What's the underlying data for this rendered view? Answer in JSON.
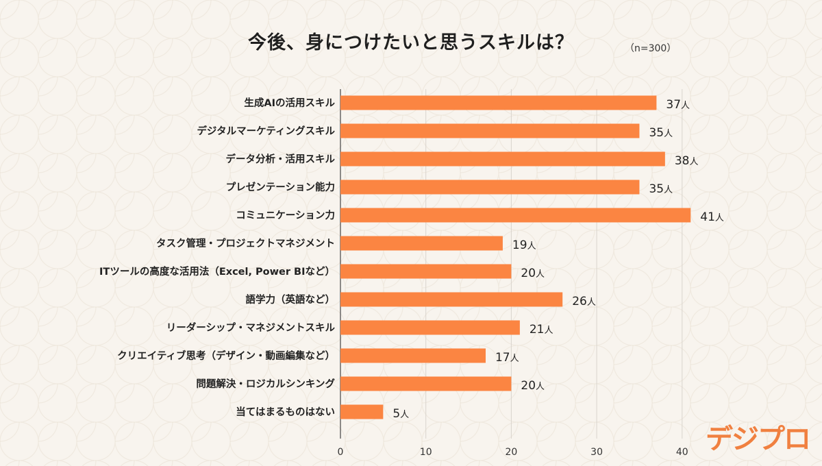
{
  "chart_data": {
    "type": "bar",
    "orientation": "horizontal",
    "title": "今後、身につけたいと思うスキルは？",
    "sample_size": "（n=300）",
    "unit": "人",
    "categories": [
      "生成AIの活用スキル",
      "デジタルマーケティングスキル",
      "データ分析・活用スキル",
      "プレゼンテーション能力",
      "コミュニケーション力",
      "タスク管理・プロジェクトマネジメント",
      "ITツールの高度な活用法（Excel, Power BIなど）",
      "語学力（英語など）",
      "リーダーシップ・マネジメントスキル",
      "クリエイティブ思考（デザイン・動画編集など）",
      "問題解決・ロジカルシンキング",
      "当てはまるものはない"
    ],
    "values": [
      37,
      35,
      38,
      35,
      41,
      19,
      20,
      26,
      21,
      17,
      20,
      5
    ],
    "xlim": [
      0,
      40
    ],
    "xticks": [
      0,
      10,
      20,
      30,
      40
    ],
    "bar_color": "#fb8542",
    "grid_color": "#d9d4cd",
    "xlabel": "",
    "ylabel": ""
  },
  "brand": {
    "logo_text": "デジプロ",
    "color": "#f08040"
  }
}
